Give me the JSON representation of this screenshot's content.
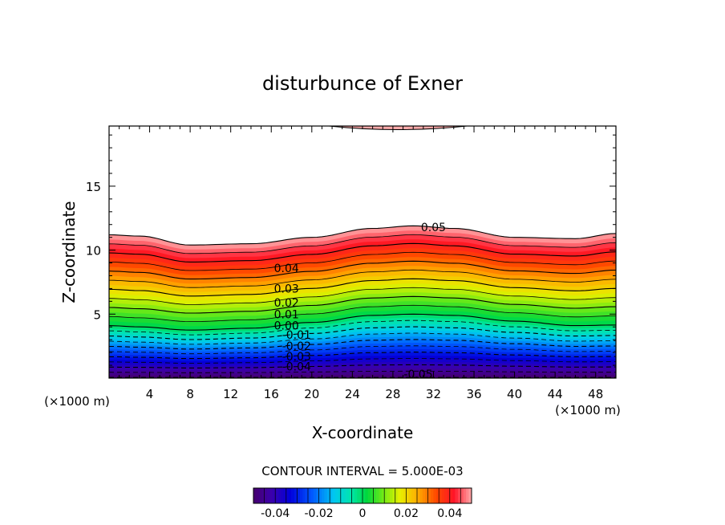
{
  "chart_data": {
    "type": "heatmap",
    "subtype": "filled-contour",
    "title": "disturbunce of Exner",
    "xlabel": "X-coordinate",
    "ylabel": "Z-coordinate",
    "x_unit_label": "(×1000 m)",
    "x_unit_label_left": "(×1000 m)",
    "xlim": [
      0,
      50
    ],
    "ylim": [
      0,
      19.7
    ],
    "xticks": [
      4,
      8,
      12,
      16,
      20,
      24,
      28,
      32,
      36,
      40,
      44,
      48
    ],
    "xtick_labels": [
      "4",
      "8",
      "12",
      "16",
      "20",
      "24",
      "28",
      "32",
      "36",
      "40",
      "44",
      "48"
    ],
    "yticks": [
      5,
      10,
      15
    ],
    "ytick_labels": [
      "5",
      "10",
      "15"
    ],
    "contour_interval_text": "CONTOUR INTERVAL = 5.000E-03",
    "contour_interval": 0.005,
    "colorbar": {
      "min": -0.05,
      "max": 0.05,
      "ticks": [
        -0.04,
        -0.02,
        0,
        0.02,
        0.04
      ],
      "tick_labels": [
        "-0.04",
        "-0.02",
        "0",
        "0.02",
        "0.04"
      ]
    },
    "contour_labels": [
      {
        "text": "0.05",
        "x": 32,
        "z": 11.8
      },
      {
        "text": "0.04",
        "x": 17.5,
        "z": 8.6
      },
      {
        "text": "0.03",
        "x": 17.5,
        "z": 7.0
      },
      {
        "text": "0.02",
        "x": 17.5,
        "z": 5.9
      },
      {
        "text": "0.01",
        "x": 17.5,
        "z": 5.0
      },
      {
        "text": "0.00",
        "x": 17.5,
        "z": 4.1
      },
      {
        "text": "-0.01",
        "x": 18.5,
        "z": 3.4
      },
      {
        "text": "-0.02",
        "x": 18.5,
        "z": 2.5
      },
      {
        "text": "-0.03",
        "x": 18.5,
        "z": 1.7
      },
      {
        "text": "-0.04",
        "x": 18.5,
        "z": 0.9
      },
      {
        "text": "-0.05",
        "x": 30.5,
        "z": 0.3
      }
    ],
    "field_profile": {
      "description_x": [
        0,
        3,
        8,
        14,
        20,
        26,
        30,
        34,
        40,
        46,
        50
      ],
      "zero_level_z": [
        4.1,
        4.0,
        3.75,
        3.9,
        4.35,
        4.9,
        5.0,
        4.9,
        4.45,
        4.1,
        4.15
      ],
      "level_spacing_z": 0.85,
      "top_contour_z": [
        11.2,
        11.1,
        10.4,
        10.5,
        11.0,
        11.7,
        11.9,
        11.7,
        11.0,
        10.9,
        11.3
      ]
    },
    "top_patch": {
      "x_start": 21.7,
      "x_end": 35.3,
      "z_peak": 19.7
    },
    "grid": false
  }
}
